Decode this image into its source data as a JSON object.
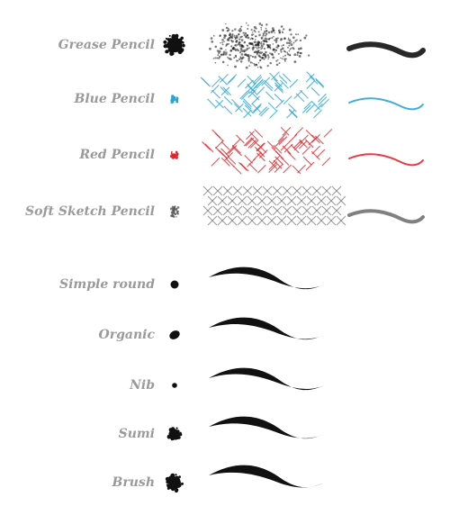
{
  "brushes": [
    {
      "label": "Grease Pencil",
      "color": "#111111",
      "style": "grease"
    },
    {
      "label": "Blue Pencil",
      "color": "#2aa6d6",
      "style": "hatch"
    },
    {
      "label": "Red Pencil",
      "color": "#e3262b",
      "style": "hatch"
    },
    {
      "label": "Soft Sketch Pencil",
      "color": "#555555",
      "style": "soft"
    },
    {
      "label": "Simple round",
      "color": "#111111",
      "style": "round"
    },
    {
      "label": "Organic",
      "color": "#111111",
      "style": "organic"
    },
    {
      "label": "Nib",
      "color": "#111111",
      "style": "nib"
    },
    {
      "label": "Sumi",
      "color": "#111111",
      "style": "sumi"
    },
    {
      "label": "Brush",
      "color": "#111111",
      "style": "brush"
    }
  ]
}
